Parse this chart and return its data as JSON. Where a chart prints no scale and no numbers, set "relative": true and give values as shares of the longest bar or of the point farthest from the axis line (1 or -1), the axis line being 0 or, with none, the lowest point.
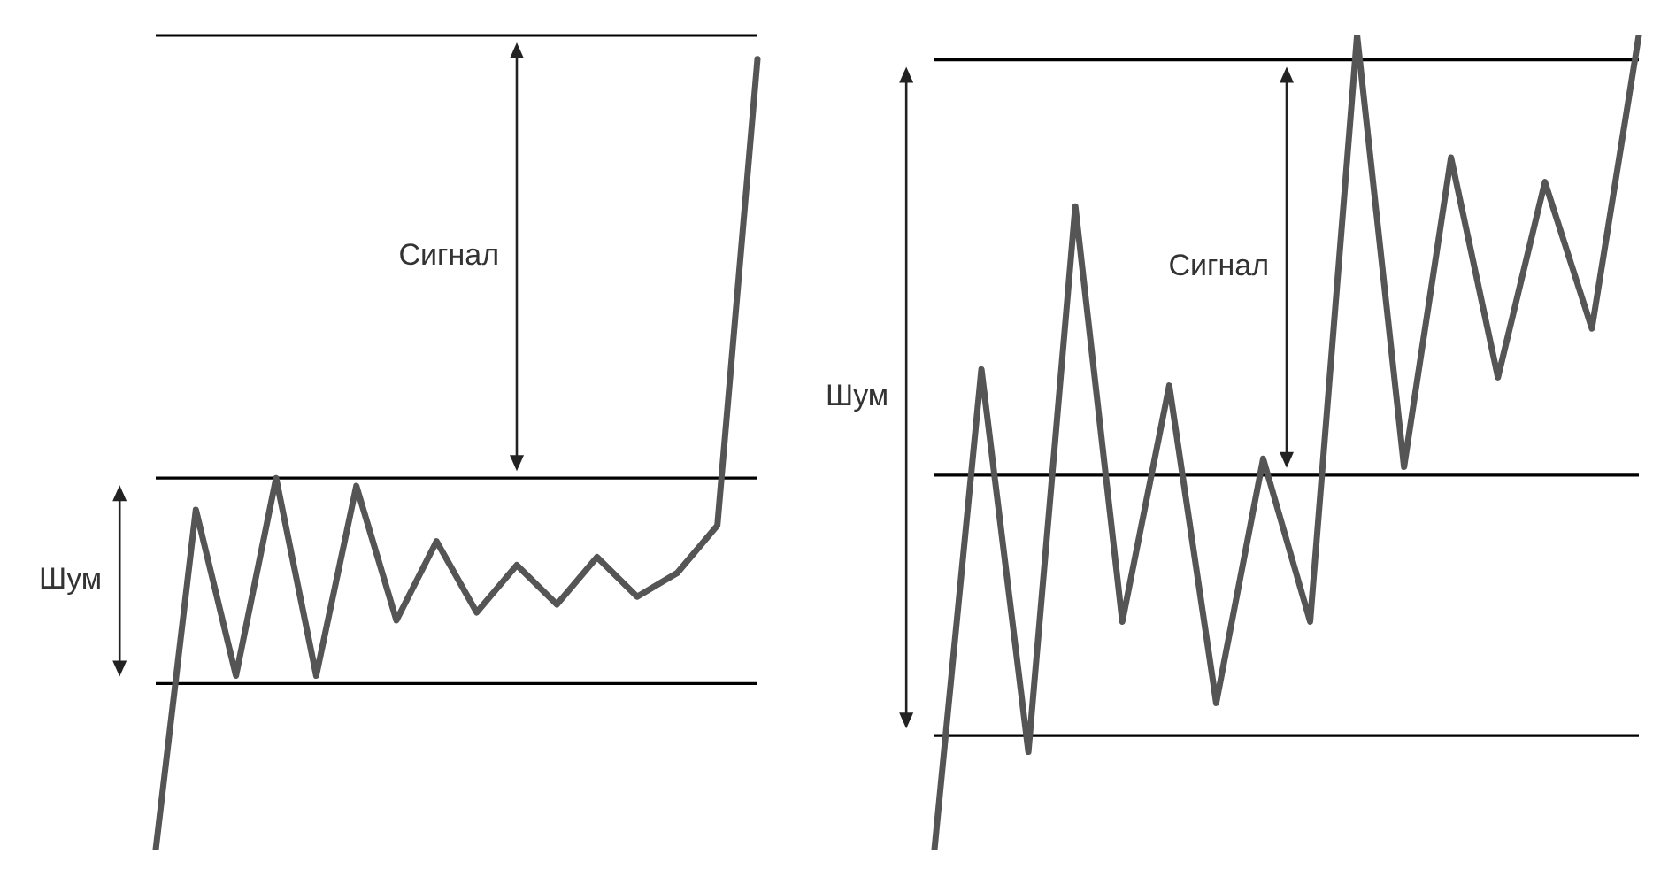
{
  "chart_data": [
    {
      "type": "line",
      "relative": true,
      "tick_labels": false,
      "categories": [
        null,
        null,
        null,
        null,
        null,
        null,
        null,
        null,
        null,
        null,
        null,
        null,
        null,
        null,
        null,
        null
      ],
      "series": [
        {
          "color": "#555555",
          "values": [
            0,
            0.43,
            0.22,
            0.47,
            0.22,
            0.46,
            0.29,
            0.39,
            0.3,
            0.36,
            0.31,
            0.37,
            0.32,
            0.35,
            0.41,
            1.0
          ]
        }
      ],
      "ref_lines": [
        {
          "axis": "y",
          "value": 1.03,
          "color": "#000000"
        },
        {
          "axis": "y",
          "value": 0.47,
          "color": "#000000"
        },
        {
          "axis": "y",
          "value": 0.21,
          "color": "#000000"
        }
      ],
      "annotations": [
        "Сигнал",
        "Шум"
      ]
    },
    {
      "type": "line",
      "relative": true,
      "tick_labels": false,
      "categories": [
        null,
        null,
        null,
        null,
        null,
        null,
        null,
        null,
        null,
        null,
        null,
        null,
        null,
        null,
        null,
        null
      ],
      "series": [
        {
          "color": "#555555",
          "values": [
            0,
            0.59,
            0.12,
            0.79,
            0.28,
            0.57,
            0.18,
            0.48,
            0.28,
            1.0,
            0.47,
            0.85,
            0.58,
            0.82,
            0.64,
            1.0
          ]
        }
      ],
      "ref_lines": [
        {
          "axis": "y",
          "value": 0.97,
          "color": "#000000"
        },
        {
          "axis": "y",
          "value": 0.46,
          "color": "#000000"
        },
        {
          "axis": "y",
          "value": 0.14,
          "color": "#000000"
        }
      ],
      "annotations": [
        "Шум",
        "Сигнал"
      ]
    }
  ]
}
